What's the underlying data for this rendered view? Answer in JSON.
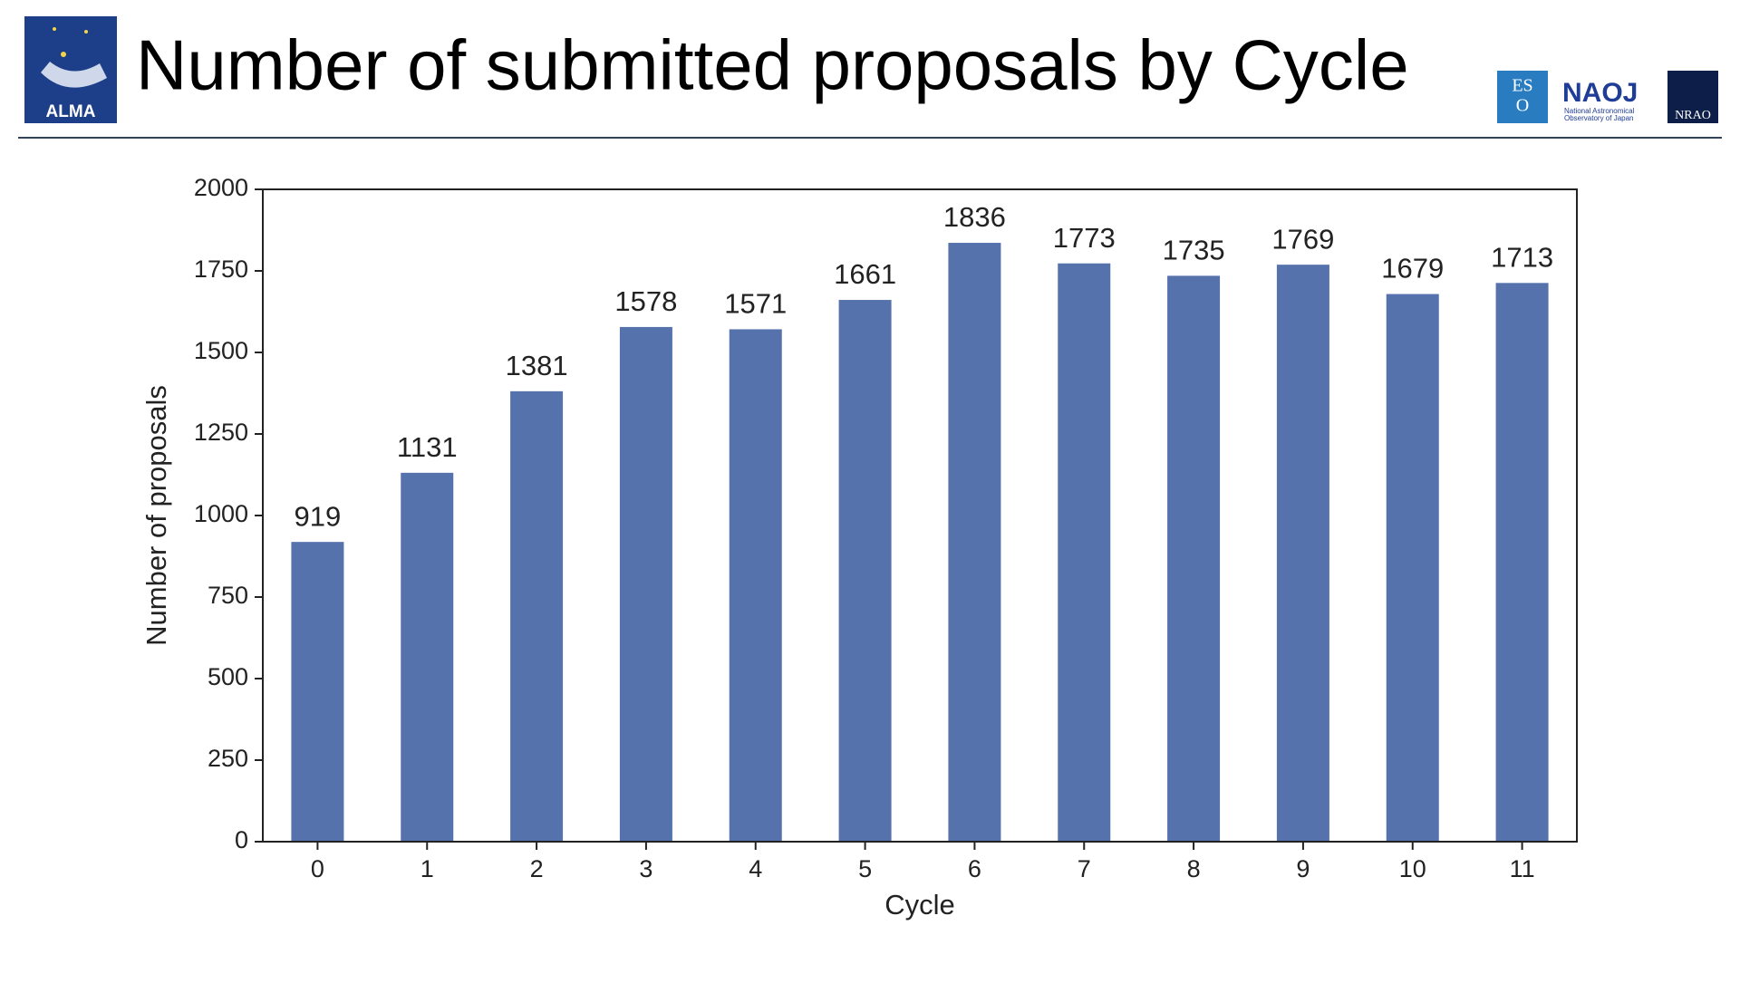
{
  "chart_data": {
    "type": "bar",
    "title": "Number of submitted proposals by Cycle",
    "x_label": "Cycle",
    "y_label": "Number of proposals",
    "categories": [
      "0",
      "1",
      "2",
      "3",
      "4",
      "5",
      "6",
      "7",
      "8",
      "9",
      "10",
      "11"
    ],
    "values": [
      919,
      1131,
      1381,
      1578,
      1571,
      1661,
      1836,
      1773,
      1735,
      1769,
      1679,
      1713
    ],
    "color": "#5572ad",
    "ylim": [
      0,
      2000
    ],
    "yticks": [
      0,
      250,
      500,
      750,
      1000,
      1250,
      1500,
      1750,
      2000
    ],
    "grid": false
  },
  "logos": [
    "ALMA",
    "ES",
    "O",
    "NAOJ",
    "National Astronomical",
    "Observatory of Japan",
    "NRAO"
  ]
}
